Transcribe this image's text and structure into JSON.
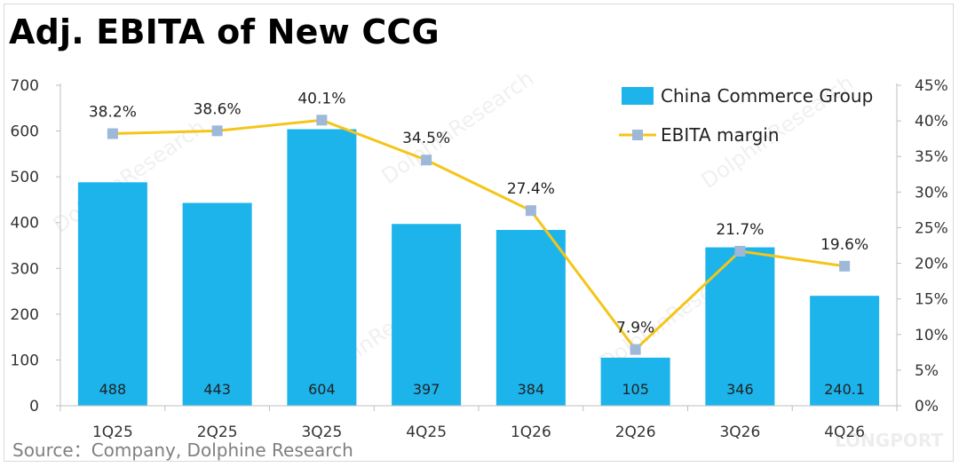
{
  "title": "Adj. EBITA of New CCG",
  "source": "Source：Company, Dolphine Research",
  "watermarks": [
    "DolphinResearch",
    "LONGPORT"
  ],
  "colors": {
    "bar": "#1db4ec",
    "line": "#f5c518",
    "marker": "#9db8d9",
    "axis_text": "#333333",
    "source_text": "#7f7f7f"
  },
  "chart_data": {
    "type": "bar",
    "categories": [
      "1Q25",
      "2Q25",
      "3Q25",
      "4Q25",
      "1Q26",
      "2Q26",
      "3Q26",
      "4Q26"
    ],
    "series": [
      {
        "name": "China Commerce Group",
        "type": "bar",
        "axis": "left",
        "values": [
          488,
          443,
          604,
          397,
          384,
          105,
          346,
          240.1
        ],
        "labels": [
          "488",
          "443",
          "604",
          "397",
          "384",
          "105",
          "346",
          "240.1"
        ]
      },
      {
        "name": "EBITA margin",
        "type": "line",
        "axis": "right",
        "values": [
          38.2,
          38.6,
          40.1,
          34.5,
          27.4,
          7.9,
          21.7,
          19.6
        ],
        "labels": [
          "38.2%",
          "38.6%",
          "40.1%",
          "34.5%",
          "27.4%",
          "7.9%",
          "21.7%",
          "19.6%"
        ]
      }
    ],
    "y_left": {
      "min": 0,
      "max": 700,
      "ticks": [
        "0",
        "100",
        "200",
        "300",
        "400",
        "500",
        "600",
        "700"
      ]
    },
    "y_right": {
      "min": 0,
      "max": 45,
      "ticks": [
        "0%",
        "5%",
        "10%",
        "15%",
        "20%",
        "25%",
        "30%",
        "35%",
        "40%",
        "45%"
      ]
    },
    "grid": false,
    "legend_position": "top-right"
  }
}
